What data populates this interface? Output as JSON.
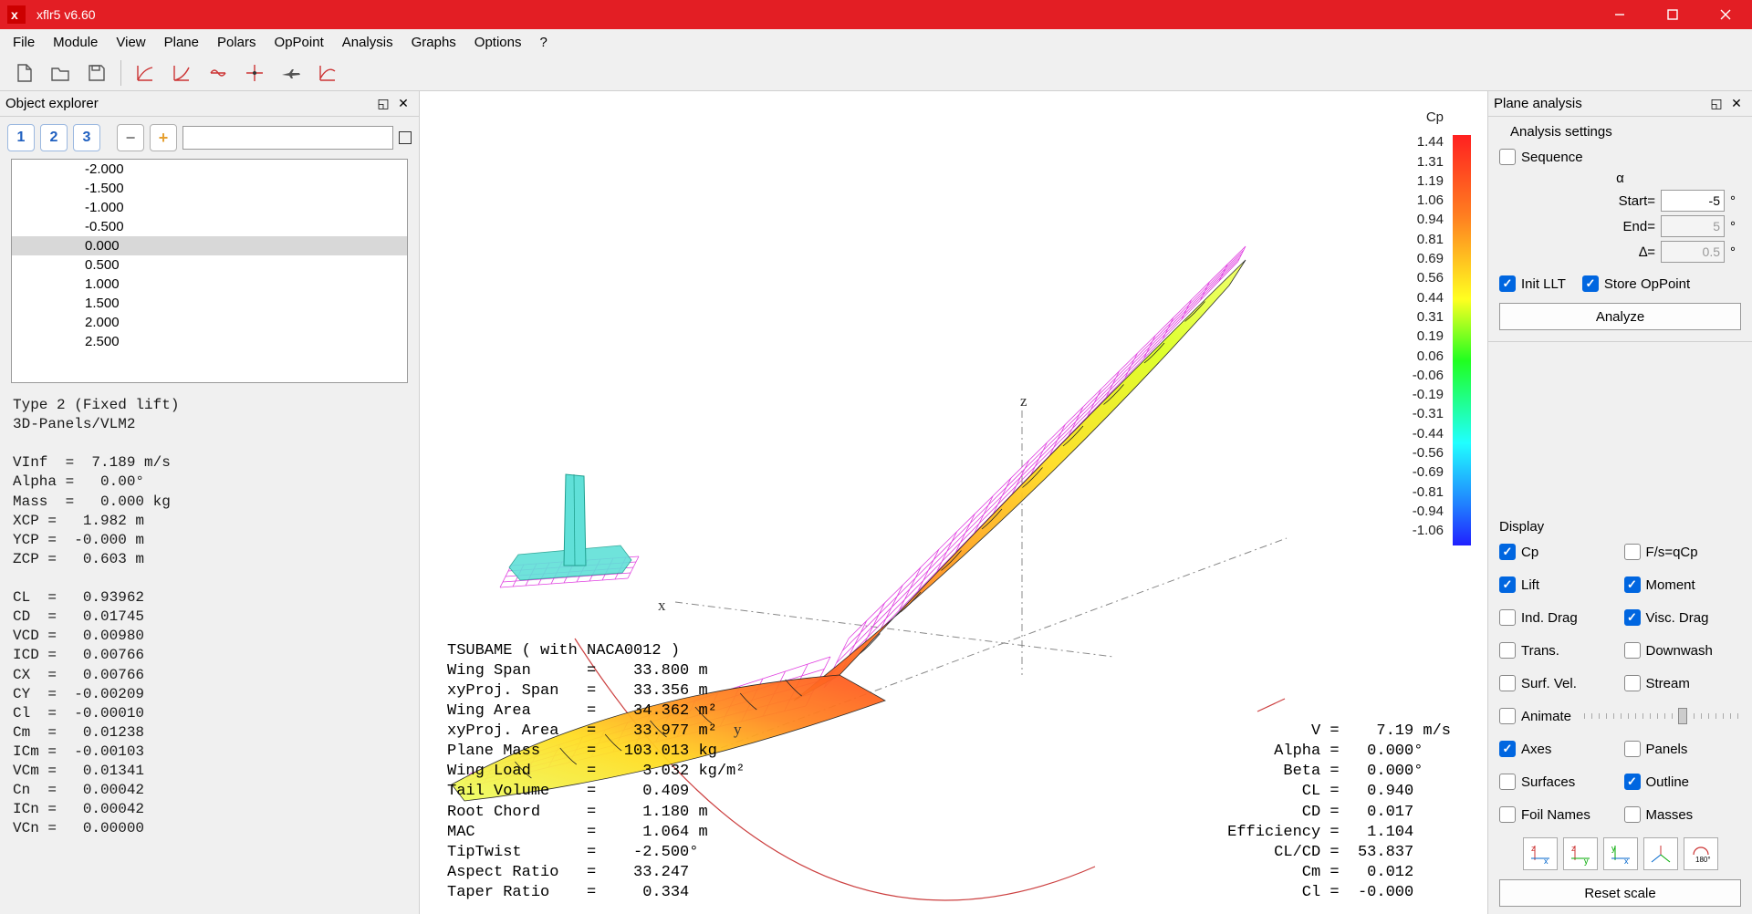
{
  "app": {
    "title": "xflr5 v6.60"
  },
  "menu": [
    "File",
    "Module",
    "View",
    "Plane",
    "Polars",
    "OpPoint",
    "Analysis",
    "Graphs",
    "Options",
    "?"
  ],
  "left_panel": {
    "title": "Object explorer",
    "values": [
      "-2.000",
      "-1.500",
      "-1.000",
      "-0.500",
      "0.000",
      "0.500",
      "1.000",
      "1.500",
      "2.000",
      "2.500"
    ],
    "selected_index": 4,
    "info": "Type 2 (Fixed lift)\n3D-Panels/VLM2\n\nVInf  =  7.189 m/s\nAlpha =   0.00°\nMass  =   0.000 kg\nXCP =   1.982 m\nYCP =  -0.000 m\nZCP =   0.603 m\n\nCL  =   0.93962\nCD  =   0.01745\nVCD =   0.00980\nICD =   0.00766\nCX  =   0.00766\nCY  =  -0.00209\nCl  =  -0.00010\nCm  =   0.01238\nICm =  -0.00103\nVCm =   0.01341\nCn  =   0.00042\nICn =   0.00042\nVCn =   0.00000"
  },
  "cp": {
    "title": "Cp",
    "values": [
      "1.44",
      "1.31",
      "1.19",
      "1.06",
      "0.94",
      "0.81",
      "0.69",
      "0.56",
      "0.44",
      "0.31",
      "0.19",
      "0.06",
      "-0.06",
      "-0.19",
      "-0.31",
      "-0.44",
      "-0.56",
      "-0.69",
      "-0.81",
      "-0.94",
      "-1.06"
    ],
    "bar_stops": [
      {
        "c": "#ff2020",
        "p": 0
      },
      {
        "c": "#ff8020",
        "p": 20
      },
      {
        "c": "#ffff20",
        "p": 40
      },
      {
        "c": "#20ff20",
        "p": 55
      },
      {
        "c": "#20ffff",
        "p": 75
      },
      {
        "c": "#2080ff",
        "p": 90
      },
      {
        "c": "#2020ff",
        "p": 100
      }
    ]
  },
  "wing_info": "TSUBAME ( with NACA0012 )\nWing Span      =    33.800 m\nxyProj. Span   =    33.356 m\nWing Area      =    34.362 m²\nxyProj. Area   =    33.977 m²\nPlane Mass     =   103.013 kg\nWing Load      =     3.032 kg/m²\nTail Volume    =     0.409\nRoot Chord     =     1.180 m\nMAC            =     1.064 m\nTipTwist       =    -2.500°\nAspect Ratio   =    33.247\nTaper Ratio    =     0.334",
  "results_info": "         V =    7.19 m/s\n     Alpha =   0.000°\n      Beta =   0.000°\n        CL =   0.940\n        CD =   0.017\nEfficiency =   1.104\n     CL/CD =  53.837\n        Cm =   0.012\n        Cl =  -0.000",
  "right_panel": {
    "title": "Plane analysis",
    "analysis": {
      "heading": "Analysis settings",
      "sequence": "Sequence",
      "alpha": "α",
      "start_label": "Start=",
      "start_val": "-5",
      "end_label": "End=",
      "end_val": "5",
      "delta_label": "∆=",
      "delta_val": "0.5",
      "init_llt": "Init LLT",
      "store_op": "Store OpPoint",
      "analyze": "Analyze"
    },
    "display": {
      "heading": "Display",
      "opts": [
        {
          "label": "Cp",
          "on": true
        },
        {
          "label": "F/s=qCp",
          "on": false
        },
        {
          "label": "Lift",
          "on": true
        },
        {
          "label": "Moment",
          "on": true
        },
        {
          "label": "Ind. Drag",
          "on": false
        },
        {
          "label": "Visc. Drag",
          "on": true
        },
        {
          "label": "Trans.",
          "on": false
        },
        {
          "label": "Downwash",
          "on": false
        },
        {
          "label": "Surf. Vel.",
          "on": false
        },
        {
          "label": "Stream",
          "on": false
        },
        {
          "label": "Animate",
          "on": false,
          "slider": true
        },
        {
          "label": "Axes",
          "on": true
        },
        {
          "label": "Panels",
          "on": false
        },
        {
          "label": "Surfaces",
          "on": false
        },
        {
          "label": "Outline",
          "on": true
        },
        {
          "label": "Foil Names",
          "on": false
        },
        {
          "label": "Masses",
          "on": false
        }
      ],
      "reset": "Reset scale"
    }
  },
  "colors": {
    "wireframe": "#e040e0",
    "outline": "#202020",
    "tail_fill": "#60e0d8",
    "tail_edge": "#20a090",
    "arc": "#cc4040",
    "axis": "#888"
  }
}
